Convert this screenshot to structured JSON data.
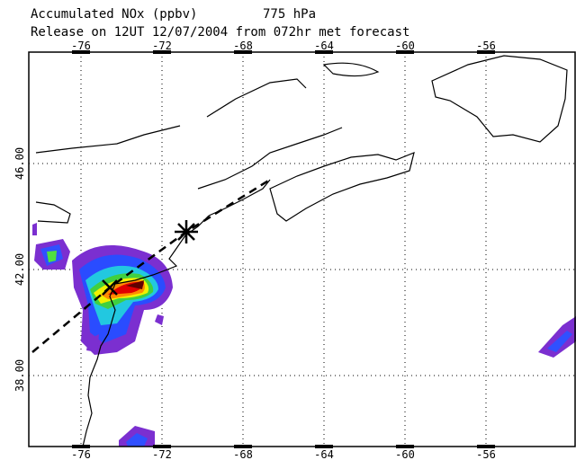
{
  "header": {
    "title_left": "Accumulated NOx  (ppbv)",
    "title_right": "775 hPa",
    "subtitle": "Release on 12UT 12/07/2004 from 072hr met forecast"
  },
  "map": {
    "lon_ticks": [
      -76,
      -72,
      -68,
      -64,
      -60,
      -56
    ],
    "lat_ticks": [
      {
        "value": 46,
        "label": "46.00"
      },
      {
        "value": 42,
        "label": "42.00"
      },
      {
        "value": 38,
        "label": "38.00"
      }
    ]
  }
}
